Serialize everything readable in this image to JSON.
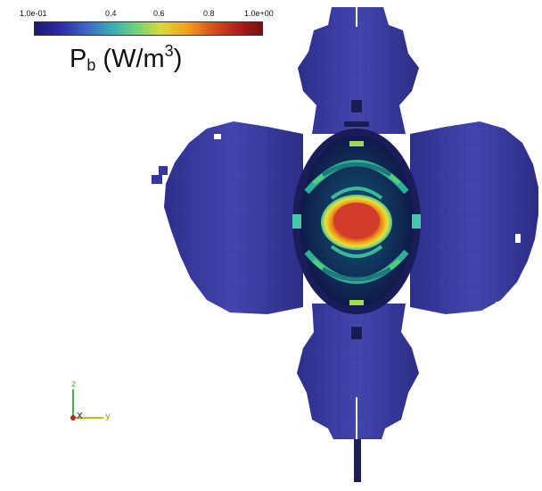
{
  "colorbar": {
    "ticks": [
      "1.0e-01",
      "0.4",
      "0.6",
      "0.8",
      "1.0e+00"
    ],
    "title_main": "P",
    "title_sub": "b",
    "title_unit_open": " (W/m",
    "title_sup": "3",
    "title_unit_close": ")",
    "gradient_colors": [
      "#1e1a6e",
      "#2a2ba5",
      "#3e63c4",
      "#38a8b8",
      "#6fd27a",
      "#d9d83a",
      "#f2a21e",
      "#d9541c",
      "#b1201c",
      "#7a0f10"
    ]
  },
  "orientation_axes": {
    "z_label": "z",
    "x_label": "X",
    "y_label": "y"
  },
  "colors": {
    "background": "#ffffff",
    "low_value_blue": "#3d3fa3",
    "core_red": "#d2352a"
  }
}
